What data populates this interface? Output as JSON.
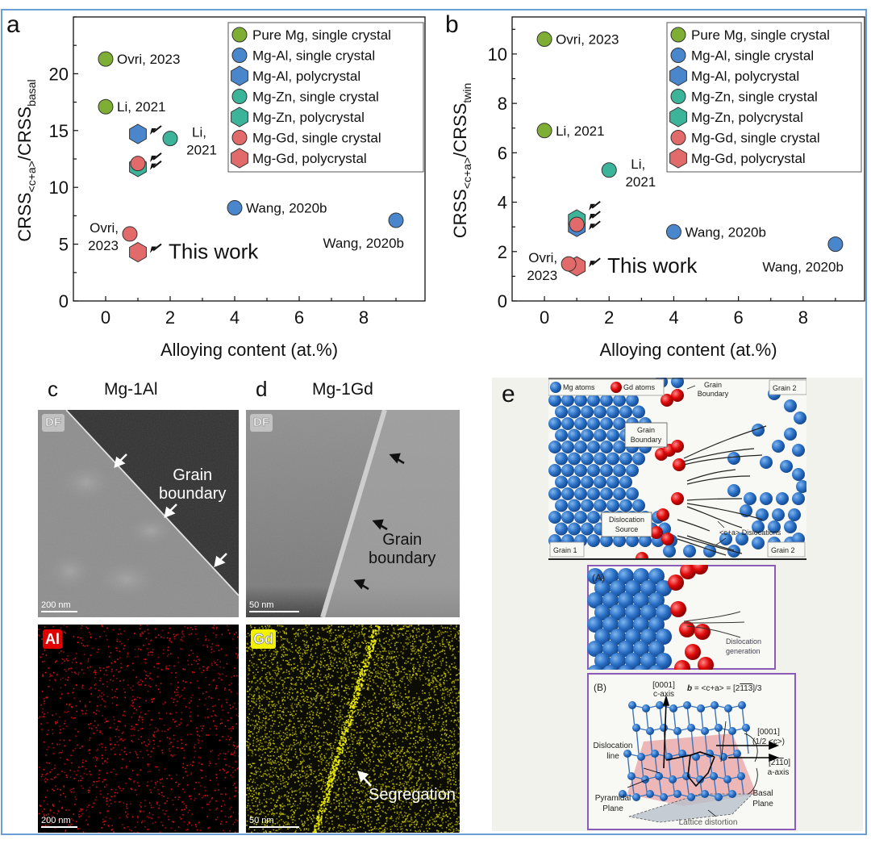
{
  "colors": {
    "frame": "#6a9ed8",
    "pure_mg": "#7fae34",
    "mg_al": "#4a86cc",
    "mg_zn": "#3cb49a",
    "mg_gd": "#e26a6a",
    "header_c": "#d9e6f3",
    "header_d": "#e8e0f0",
    "box_border": "#8a5cb8"
  },
  "chart_data": [
    {
      "panel": "a",
      "type": "scatter",
      "xlabel": "Alloying content (at.%)",
      "ylabel_main": "CRSS",
      "ylabel_sub1": "<c+a>",
      "ylabel_mid": "/CRSS",
      "ylabel_sub2": "basal",
      "xlim": [
        -1,
        9.9
      ],
      "ylim": [
        0,
        25
      ],
      "xticks": [
        0,
        2,
        4,
        6,
        8
      ],
      "yticks": [
        0,
        5,
        10,
        15,
        20
      ],
      "legend_position": "top-right",
      "legend": [
        {
          "label": "Pure Mg, single crystal",
          "series": "pure_mg",
          "marker": "circle"
        },
        {
          "label": "Mg-Al, single crystal",
          "series": "mg_al",
          "marker": "circle"
        },
        {
          "label": "Mg-Al, polycrystal",
          "series": "mg_al",
          "marker": "hexagon"
        },
        {
          "label": "Mg-Zn, single crystal",
          "series": "mg_zn",
          "marker": "circle"
        },
        {
          "label": "Mg-Zn, polycrystal",
          "series": "mg_zn",
          "marker": "hexagon"
        },
        {
          "label": "Mg-Gd, single crystal",
          "series": "mg_gd",
          "marker": "circle"
        },
        {
          "label": "Mg-Gd, polycrystal",
          "series": "mg_gd",
          "marker": "hexagon"
        }
      ],
      "points": [
        {
          "series": "pure_mg",
          "marker": "circle",
          "x": 0,
          "y": 21.3
        },
        {
          "series": "pure_mg",
          "marker": "circle",
          "x": 0,
          "y": 17.1
        },
        {
          "series": "mg_al",
          "marker": "hexagon",
          "x": 1,
          "y": 14.7
        },
        {
          "series": "mg_zn",
          "marker": "circle",
          "x": 2,
          "y": 14.3
        },
        {
          "series": "mg_zn",
          "marker": "hexagon",
          "x": 1,
          "y": 11.8
        },
        {
          "series": "mg_gd",
          "marker": "circle",
          "x": 1,
          "y": 12.1
        },
        {
          "series": "mg_al",
          "marker": "circle",
          "x": 4,
          "y": 8.2
        },
        {
          "series": "mg_al",
          "marker": "circle",
          "x": 9,
          "y": 7.1
        },
        {
          "series": "mg_gd",
          "marker": "circle",
          "x": 0.75,
          "y": 5.9
        },
        {
          "series": "mg_gd",
          "marker": "hexagon",
          "x": 1,
          "y": 4.3
        }
      ],
      "annotations": [
        {
          "text": "Ovri, 2023",
          "x": 0,
          "y": 21.3,
          "anchor": "right"
        },
        {
          "text": "Li, 2021",
          "x": 0,
          "y": 17.1,
          "anchor": "right"
        },
        {
          "text": "Li,",
          "x": 2,
          "y": 14.3,
          "anchor": "right-up"
        },
        {
          "text": "2021",
          "x": 2,
          "y": 14.3,
          "anchor": "right-down"
        },
        {
          "text": "Wang, 2020b",
          "x": 4,
          "y": 8.2,
          "anchor": "right"
        },
        {
          "text": "Wang, 2020b",
          "x": 9,
          "y": 7.1,
          "anchor": "below-left"
        },
        {
          "text": "Ovri,",
          "x": 0.75,
          "y": 5.9,
          "anchor": "left-up"
        },
        {
          "text": "2023",
          "x": 0.75,
          "y": 5.9,
          "anchor": "left-down"
        },
        {
          "text": "This work",
          "x": 1,
          "y": 4.3,
          "anchor": "right-large"
        }
      ],
      "arrows_at": [
        {
          "x": 1,
          "y": 14.7
        },
        {
          "x": 1,
          "y": 12.3
        },
        {
          "x": 1,
          "y": 11.6
        },
        {
          "x": 1,
          "y": 4.3
        }
      ]
    },
    {
      "panel": "b",
      "type": "scatter",
      "xlabel": "Alloying content (at.%)",
      "ylabel_main": "CRSS",
      "ylabel_sub1": "<c+a>",
      "ylabel_mid": "/CRSS",
      "ylabel_sub2": "twin",
      "xlim": [
        -1,
        9.9
      ],
      "ylim": [
        0,
        11.5
      ],
      "xticks": [
        0,
        2,
        4,
        6,
        8
      ],
      "yticks": [
        0,
        2,
        4,
        6,
        8,
        10
      ],
      "legend_position": "top-right",
      "legend": [
        {
          "label": "Pure Mg, single crystal",
          "series": "pure_mg",
          "marker": "circle"
        },
        {
          "label": "Mg-Al, single crystal",
          "series": "mg_al",
          "marker": "circle"
        },
        {
          "label": "Mg-Al, polycrystal",
          "series": "mg_al",
          "marker": "hexagon"
        },
        {
          "label": "Mg-Zn, single crystal",
          "series": "mg_zn",
          "marker": "circle"
        },
        {
          "label": "Mg-Zn, polycrystal",
          "series": "mg_zn",
          "marker": "hexagon"
        },
        {
          "label": "Mg-Gd, single crystal",
          "series": "mg_gd",
          "marker": "circle"
        },
        {
          "label": "Mg-Gd, polycrystal",
          "series": "mg_gd",
          "marker": "hexagon"
        }
      ],
      "points": [
        {
          "series": "pure_mg",
          "marker": "circle",
          "x": 0,
          "y": 10.6
        },
        {
          "series": "pure_mg",
          "marker": "circle",
          "x": 0,
          "y": 6.9
        },
        {
          "series": "mg_zn",
          "marker": "circle",
          "x": 2,
          "y": 5.3
        },
        {
          "series": "mg_al",
          "marker": "hexagon",
          "x": 1,
          "y": 3.0
        },
        {
          "series": "mg_zn",
          "marker": "hexagon",
          "x": 1,
          "y": 3.3
        },
        {
          "series": "mg_gd",
          "marker": "circle",
          "x": 1,
          "y": 3.1
        },
        {
          "series": "mg_al",
          "marker": "circle",
          "x": 4,
          "y": 2.8
        },
        {
          "series": "mg_al",
          "marker": "circle",
          "x": 9,
          "y": 2.3
        },
        {
          "series": "mg_gd",
          "marker": "circle",
          "x": 0.75,
          "y": 1.5
        },
        {
          "series": "mg_gd",
          "marker": "hexagon",
          "x": 1,
          "y": 1.4
        }
      ],
      "annotations": [
        {
          "text": "Ovri, 2023",
          "x": 0,
          "y": 10.6,
          "anchor": "right"
        },
        {
          "text": "Li, 2021",
          "x": 0,
          "y": 6.9,
          "anchor": "right"
        },
        {
          "text": "Li,",
          "x": 2,
          "y": 5.3,
          "anchor": "right-up"
        },
        {
          "text": "2021",
          "x": 2,
          "y": 5.3,
          "anchor": "right-down"
        },
        {
          "text": "Wang, 2020b",
          "x": 4,
          "y": 2.8,
          "anchor": "right"
        },
        {
          "text": "Wang, 2020b",
          "x": 9,
          "y": 2.3,
          "anchor": "below-left"
        },
        {
          "text": "Ovri,",
          "x": 0.75,
          "y": 1.5,
          "anchor": "left-up"
        },
        {
          "text": "2023",
          "x": 0.75,
          "y": 1.5,
          "anchor": "left-down"
        },
        {
          "text": "This work",
          "x": 1,
          "y": 1.4,
          "anchor": "right-large"
        }
      ],
      "arrows_at": [
        {
          "x": 1,
          "y": 3.7
        },
        {
          "x": 1,
          "y": 3.3
        },
        {
          "x": 1,
          "y": 2.9
        },
        {
          "x": 1,
          "y": 1.4
        }
      ]
    }
  ],
  "panel_c": {
    "letter": "c",
    "title": "Mg-1Al",
    "df_label": "DF",
    "boundary_label_1": "Grain",
    "boundary_label_2": "boundary",
    "scale_top": "200 nm",
    "eds_element": "Al",
    "scale_bottom": "200 nm"
  },
  "panel_d": {
    "letter": "d",
    "title": "Mg-1Gd",
    "df_label": "DF",
    "boundary_label_1": "Grain",
    "boundary_label_2": "boundary",
    "scale_top": "50 nm",
    "eds_element": "Gd",
    "segregation_label": "Segregation",
    "scale_bottom": "50 nm"
  },
  "panel_e": {
    "letter": "e",
    "legend_mg": "Mg atoms",
    "legend_gd": "Gd atoms",
    "grain_boundary_top_1": "Grain",
    "grain_boundary_top_2": "Boundary",
    "grain2_top": "Grain 2",
    "grain_boundary_box_1": "Grain",
    "grain_boundary_box_2": "Boundary",
    "dislocation_source_1": "Dislocation",
    "dislocation_source_2": "Source",
    "ca_dislocations": "<c+a> Dislocations",
    "grain1": "Grain 1",
    "grain2_bottom": "Grain 2",
    "box_a_label": "(A)",
    "dislocation_generation_1": "Dislocation",
    "dislocation_generation_2": "generation",
    "box_b_label": "(B)",
    "c_axis_1": "[0001]",
    "c_axis_2": "c-axis",
    "burgers": "b = <c+a> = [2̅113̅]/3",
    "burgers_b": "b",
    "burgers_rest": " = <c+a> = [2",
    "burgers_bar": "113",
    "burgers_end": "]/3",
    "half_c_1": "[0001]",
    "half_c_2": "(1/2 <c>)",
    "a_axis_1_pre": "[2",
    "a_axis_1_bar": "11",
    "a_axis_1_post": "0]",
    "a_axis_2": "a-axis",
    "dislocation_line_1": "Dislocation",
    "dislocation_line_2": "line",
    "pyramidal_1": "Pyramidal",
    "pyramidal_2": "Plane",
    "basal_1": "Basal",
    "basal_2": "Plane",
    "lattice_distortion": "Lattice distortion"
  }
}
